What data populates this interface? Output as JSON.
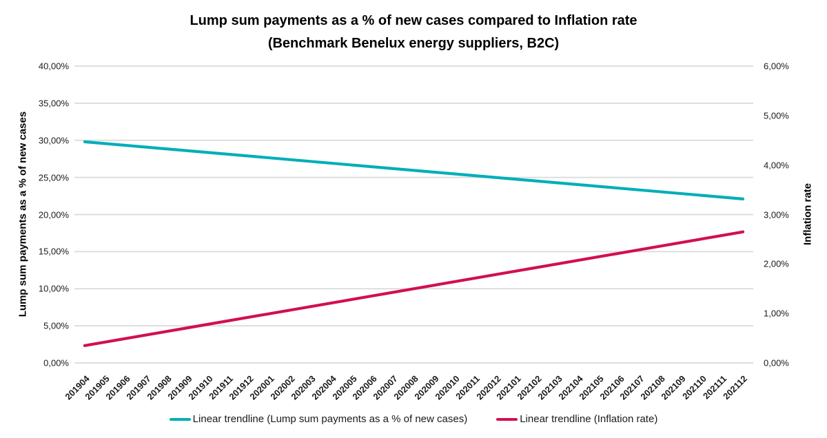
{
  "chart_data": {
    "type": "line",
    "title": "Lump sum payments as a % of new cases compared to Inflation rate",
    "subtitle": "(Benchmark Benelux energy suppliers, B2C)",
    "x": [
      "201904",
      "201905",
      "201906",
      "201907",
      "201908",
      "201909",
      "201910",
      "201911",
      "201912",
      "202001",
      "202002",
      "202003",
      "202004",
      "202005",
      "202006",
      "202007",
      "202008",
      "202009",
      "202010",
      "202011",
      "202012",
      "202101",
      "202102",
      "202103",
      "202104",
      "202105",
      "202106",
      "202107",
      "202108",
      "202109",
      "202110",
      "202111",
      "202112"
    ],
    "series": [
      {
        "name": "Linear trendline (Lump sum payments as a % of new cases)",
        "axis": "left",
        "color": "#00AEB9",
        "shape": "linear-trendline",
        "start_value": 29.8,
        "end_value": 22.1,
        "unit": "%"
      },
      {
        "name": "Linear trendline (Inflation rate)",
        "axis": "right",
        "color": "#D20F53",
        "shape": "linear-trendline",
        "start_value": 0.35,
        "end_value": 2.65,
        "unit": "%"
      }
    ],
    "left_axis": {
      "label": "Lump sum payments as a % of new cases",
      "min": 0,
      "max": 40,
      "tick_step": 5,
      "tick_labels": [
        "0,00%",
        "5,00%",
        "10,00%",
        "15,00%",
        "20,00%",
        "25,00%",
        "30,00%",
        "35,00%",
        "40,00%"
      ]
    },
    "right_axis": {
      "label": "Inflation rate",
      "min": 0,
      "max": 6,
      "tick_step": 1,
      "tick_labels": [
        "0,00%",
        "1,00%",
        "2,00%",
        "3,00%",
        "4,00%",
        "5,00%",
        "6,00%"
      ]
    },
    "grid": "horizontal",
    "legend_position": "bottom"
  },
  "colors": {
    "gridline": "#D9D9D9",
    "background": "#FFFFFF",
    "text": "#1A1A1A"
  }
}
